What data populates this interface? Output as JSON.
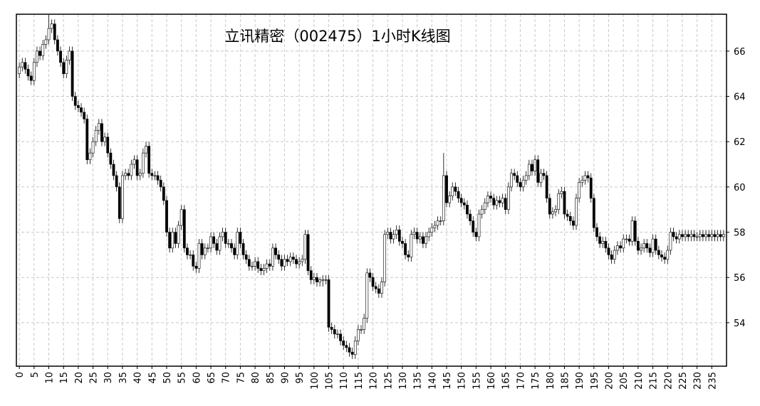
{
  "chart_data": {
    "type": "candlestick",
    "title": "立讯精密（002475）1小时K线图",
    "xlim": [
      -1,
      240
    ],
    "ylim": [
      52.08,
      67.63
    ],
    "grid": true,
    "up_color": "#ffffff",
    "down_color": "#000000",
    "xticks": [
      0,
      5,
      10,
      15,
      20,
      25,
      30,
      35,
      40,
      45,
      50,
      55,
      60,
      65,
      70,
      75,
      80,
      85,
      90,
      95,
      100,
      105,
      110,
      115,
      120,
      125,
      130,
      135,
      140,
      145,
      150,
      155,
      160,
      165,
      170,
      175,
      180,
      185,
      190,
      195,
      200,
      205,
      210,
      215,
      220,
      225,
      230,
      235
    ],
    "yticks": [
      54,
      56,
      58,
      60,
      62,
      64,
      66
    ],
    "open": [
      65.0,
      65.3,
      65.5,
      65.2,
      64.9,
      64.7,
      65.5,
      66.0,
      65.8,
      66.3,
      66.5,
      67.0,
      67.2,
      66.5,
      66.0,
      65.5,
      65.0,
      65.6,
      66.0,
      64.0,
      63.6,
      63.5,
      63.3,
      63.0,
      61.2,
      61.5,
      62.0,
      62.5,
      62.8,
      62.0,
      62.2,
      61.5,
      61.0,
      60.5,
      60.0,
      58.6,
      60.5,
      60.6,
      60.5,
      61.0,
      61.2,
      60.5,
      60.6,
      61.5,
      61.8,
      60.6,
      60.5,
      60.5,
      60.3,
      60.0,
      59.4,
      58.0,
      57.3,
      58.0,
      57.5,
      58.3,
      59.0,
      57.3,
      57.0,
      57.0,
      56.5,
      56.4,
      57.5,
      57.0,
      57.3,
      57.3,
      57.8,
      57.5,
      57.2,
      57.8,
      58.0,
      57.5,
      57.5,
      57.3,
      57.0,
      58.0,
      57.5,
      57.0,
      56.8,
      56.5,
      56.5,
      56.7,
      56.4,
      56.3,
      56.4,
      56.6,
      56.5,
      57.3,
      57.0,
      56.8,
      56.5,
      56.8,
      56.7,
      56.9,
      56.8,
      56.6,
      56.7,
      56.8,
      57.9,
      56.3,
      55.9,
      56.0,
      55.8,
      55.9,
      55.9,
      55.9,
      53.8,
      53.7,
      53.5,
      53.5,
      53.2,
      53.0,
      52.9,
      52.7,
      52.6,
      53.2,
      53.7,
      53.7,
      54.2,
      56.2,
      56.0,
      55.6,
      55.5,
      55.3,
      55.8,
      57.9,
      58.0,
      57.7,
      57.9,
      58.1,
      57.6,
      57.5,
      57.0,
      56.9,
      57.9,
      58.0,
      57.7,
      57.8,
      57.5,
      57.8,
      58.0,
      58.2,
      58.3,
      58.5,
      58.5,
      60.5,
      59.3,
      59.6,
      60.0,
      59.8,
      59.5,
      59.3,
      59.2,
      58.8,
      58.5,
      58.0,
      57.8,
      58.8,
      59.0,
      59.3,
      59.6,
      59.5,
      59.2,
      59.4,
      59.3,
      59.5,
      59.0,
      60.0,
      60.6,
      60.5,
      60.2,
      60.0,
      60.3,
      60.5,
      61.0,
      60.7,
      61.2,
      60.2,
      60.6,
      60.5,
      59.5,
      58.8,
      58.9,
      59.0,
      59.7,
      59.8,
      58.8,
      58.7,
      58.5,
      58.3,
      59.5,
      60.2,
      60.3,
      60.5,
      60.4,
      59.5,
      58.2,
      57.8,
      57.5,
      57.6,
      57.3,
      57.0,
      56.8,
      57.2,
      57.4,
      57.3,
      57.7,
      57.7,
      57.6,
      58.5,
      57.6,
      57.2,
      57.3,
      57.5,
      57.3,
      57.1,
      57.7,
      57.2,
      57.0,
      56.9,
      56.8,
      57.2,
      58.0,
      57.8,
      57.7,
      57.9,
      57.8,
      57.9,
      57.8,
      57.9,
      57.8,
      57.8,
      57.9,
      57.8,
      57.9,
      57.8,
      57.9,
      57.8,
      57.9,
      57.8
    ],
    "high": [
      65.5,
      65.7,
      65.7,
      65.4,
      65.1,
      65.7,
      66.2,
      66.2,
      66.5,
      66.7,
      67.6,
      67.4,
      67.4,
      66.7,
      66.2,
      65.7,
      65.8,
      66.2,
      66.2,
      64.2,
      63.8,
      63.7,
      63.5,
      63.2,
      61.7,
      62.2,
      62.7,
      63.0,
      63.0,
      62.4,
      62.4,
      61.7,
      61.2,
      60.7,
      60.2,
      60.7,
      60.8,
      60.8,
      61.2,
      61.4,
      61.4,
      60.8,
      61.7,
      62.0,
      62.0,
      60.8,
      60.7,
      60.7,
      60.5,
      60.2,
      59.6,
      58.2,
      58.2,
      58.2,
      58.5,
      59.2,
      59.2,
      57.5,
      57.2,
      57.2,
      56.7,
      57.7,
      57.7,
      57.5,
      57.5,
      58.0,
      58.0,
      57.7,
      58.0,
      58.2,
      58.2,
      57.7,
      57.7,
      57.5,
      58.2,
      58.2,
      57.7,
      57.2,
      57.0,
      56.7,
      56.9,
      56.9,
      56.6,
      56.6,
      56.8,
      56.8,
      57.5,
      57.5,
      57.2,
      57.0,
      57.0,
      57.0,
      57.1,
      57.1,
      57.0,
      56.9,
      57.0,
      58.1,
      58.1,
      56.5,
      56.2,
      56.2,
      56.0,
      56.1,
      56.1,
      56.1,
      54.0,
      53.9,
      53.7,
      53.7,
      53.4,
      53.2,
      53.1,
      52.9,
      53.4,
      53.9,
      53.9,
      54.4,
      56.4,
      56.4,
      56.2,
      55.8,
      55.7,
      56.0,
      58.1,
      58.2,
      58.2,
      58.1,
      58.3,
      58.3,
      57.8,
      57.7,
      57.2,
      58.1,
      58.2,
      58.2,
      58.0,
      58.0,
      58.0,
      58.2,
      58.4,
      58.5,
      58.7,
      58.7,
      61.5,
      60.7,
      59.8,
      60.2,
      60.2,
      60.0,
      59.7,
      59.5,
      59.4,
      59.0,
      58.7,
      58.2,
      59.0,
      59.2,
      59.5,
      59.8,
      59.8,
      59.7,
      59.6,
      59.6,
      59.7,
      59.7,
      60.2,
      60.8,
      60.8,
      60.7,
      60.4,
      60.5,
      60.7,
      61.2,
      61.2,
      61.4,
      61.4,
      60.8,
      60.8,
      60.7,
      59.7,
      59.1,
      59.2,
      59.9,
      60.0,
      60.0,
      59.0,
      58.9,
      58.7,
      59.7,
      60.4,
      60.5,
      60.7,
      60.7,
      60.6,
      59.7,
      58.4,
      58.0,
      57.8,
      57.8,
      57.5,
      57.2,
      57.4,
      57.6,
      57.6,
      57.9,
      57.9,
      57.9,
      58.7,
      58.7,
      57.8,
      57.5,
      57.7,
      57.7,
      57.5,
      57.9,
      57.9,
      57.4,
      57.2,
      57.1,
      57.4,
      58.2,
      58.2,
      58.0,
      58.1,
      58.1,
      58.1,
      58.1,
      58.1,
      58.1,
      58.0,
      58.1,
      58.1,
      58.1,
      58.1,
      58.1,
      58.1,
      58.1,
      58.1,
      58.1
    ],
    "low": [
      64.8,
      65.1,
      65.0,
      64.7,
      64.5,
      64.5,
      65.3,
      65.6,
      65.6,
      66.1,
      66.3,
      66.8,
      66.3,
      65.8,
      65.3,
      64.8,
      64.8,
      65.4,
      63.8,
      63.4,
      63.3,
      63.1,
      62.8,
      61.0,
      61.0,
      61.3,
      61.8,
      62.3,
      61.8,
      61.8,
      61.3,
      60.8,
      60.3,
      59.8,
      58.4,
      58.4,
      60.3,
      60.3,
      60.3,
      60.8,
      60.3,
      60.3,
      60.4,
      61.3,
      60.4,
      60.3,
      60.3,
      60.1,
      59.8,
      59.2,
      57.8,
      57.1,
      57.1,
      57.3,
      57.3,
      58.1,
      57.1,
      56.8,
      56.8,
      56.3,
      56.2,
      56.2,
      56.8,
      56.8,
      57.1,
      57.1,
      57.3,
      57.0,
      57.0,
      57.6,
      57.3,
      57.3,
      57.1,
      56.8,
      56.8,
      57.3,
      56.8,
      56.6,
      56.3,
      56.3,
      56.3,
      56.2,
      56.1,
      56.1,
      56.2,
      56.3,
      56.3,
      56.8,
      56.6,
      56.3,
      56.3,
      56.5,
      56.5,
      56.6,
      56.4,
      56.4,
      56.5,
      56.6,
      56.1,
      55.7,
      55.7,
      55.6,
      55.6,
      55.6,
      55.7,
      53.6,
      53.5,
      53.3,
      53.3,
      53.0,
      52.8,
      52.7,
      52.5,
      52.4,
      52.4,
      53.0,
      53.5,
      53.5,
      54.0,
      55.8,
      55.4,
      55.3,
      55.1,
      55.1,
      55.6,
      57.7,
      57.5,
      57.5,
      57.7,
      57.4,
      57.3,
      56.8,
      56.7,
      56.7,
      57.7,
      57.5,
      57.5,
      57.3,
      57.3,
      57.6,
      57.8,
      58.0,
      58.1,
      58.3,
      58.3,
      59.1,
      59.1,
      59.4,
      59.6,
      59.3,
      59.1,
      59.0,
      58.6,
      58.3,
      57.8,
      57.6,
      57.6,
      58.6,
      58.8,
      59.1,
      59.3,
      59.0,
      59.0,
      59.1,
      59.1,
      58.8,
      58.8,
      59.8,
      60.3,
      60.0,
      59.8,
      59.8,
      60.1,
      60.3,
      60.5,
      60.5,
      60.0,
      60.0,
      60.3,
      59.3,
      58.6,
      58.6,
      58.7,
      58.8,
      59.5,
      58.6,
      58.5,
      58.3,
      58.1,
      58.1,
      59.3,
      60.0,
      60.1,
      60.2,
      59.3,
      58.0,
      57.6,
      57.3,
      57.3,
      57.1,
      56.8,
      56.6,
      56.6,
      57.0,
      57.1,
      57.1,
      57.5,
      57.4,
      57.4,
      57.4,
      57.0,
      57.0,
      57.1,
      57.1,
      56.9,
      56.9,
      57.0,
      56.8,
      56.7,
      56.6,
      56.6,
      57.0,
      57.6,
      57.5,
      57.5,
      57.6,
      57.6,
      57.6,
      57.6,
      57.6,
      57.6,
      57.6,
      57.6,
      57.6,
      57.6,
      57.6,
      57.6,
      57.6,
      57.6,
      57.6
    ],
    "close": [
      65.3,
      65.5,
      65.2,
      64.9,
      64.7,
      65.5,
      66.0,
      65.8,
      66.3,
      66.5,
      67.0,
      67.2,
      66.5,
      66.0,
      65.5,
      65.0,
      65.6,
      66.0,
      64.0,
      63.6,
      63.5,
      63.3,
      63.0,
      61.2,
      61.5,
      62.0,
      62.5,
      62.8,
      62.0,
      62.2,
      61.5,
      61.0,
      60.5,
      60.0,
      58.6,
      60.5,
      60.6,
      60.5,
      61.0,
      61.2,
      60.5,
      60.6,
      61.5,
      61.8,
      60.6,
      60.5,
      60.5,
      60.3,
      60.0,
      59.4,
      58.0,
      57.3,
      58.0,
      57.5,
      58.3,
      59.0,
      57.3,
      57.0,
      57.0,
      56.5,
      56.4,
      57.5,
      57.0,
      57.3,
      57.3,
      57.8,
      57.5,
      57.2,
      57.8,
      58.0,
      57.5,
      57.5,
      57.3,
      57.0,
      58.0,
      57.5,
      57.0,
      56.8,
      56.5,
      56.5,
      56.7,
      56.4,
      56.3,
      56.4,
      56.6,
      56.5,
      57.3,
      57.0,
      56.8,
      56.5,
      56.8,
      56.7,
      56.9,
      56.8,
      56.6,
      56.7,
      56.8,
      57.9,
      56.3,
      55.9,
      56.0,
      55.8,
      55.9,
      55.9,
      55.9,
      53.8,
      53.7,
      53.5,
      53.5,
      53.2,
      53.0,
      52.9,
      52.7,
      52.6,
      53.2,
      53.7,
      53.7,
      54.2,
      56.2,
      56.0,
      55.6,
      55.5,
      55.3,
      55.8,
      57.9,
      58.0,
      57.7,
      57.9,
      58.1,
      57.6,
      57.5,
      57.0,
      56.9,
      57.9,
      58.0,
      57.7,
      57.8,
      57.5,
      57.8,
      58.0,
      58.2,
      58.3,
      58.5,
      58.5,
      60.5,
      59.3,
      59.6,
      60.0,
      59.8,
      59.5,
      59.3,
      59.2,
      58.8,
      58.5,
      58.0,
      57.8,
      58.8,
      59.0,
      59.3,
      59.6,
      59.5,
      59.2,
      59.4,
      59.3,
      59.5,
      59.0,
      60.0,
      60.6,
      60.5,
      60.2,
      60.0,
      60.3,
      60.5,
      61.0,
      60.7,
      61.2,
      60.2,
      60.6,
      60.5,
      59.5,
      58.8,
      58.9,
      59.0,
      59.7,
      59.8,
      58.8,
      58.7,
      58.5,
      58.3,
      59.5,
      60.2,
      60.3,
      60.5,
      60.4,
      59.5,
      58.2,
      57.8,
      57.5,
      57.6,
      57.3,
      57.0,
      56.8,
      57.2,
      57.4,
      57.3,
      57.7,
      57.7,
      57.6,
      58.5,
      57.6,
      57.2,
      57.3,
      57.5,
      57.3,
      57.1,
      57.7,
      57.2,
      57.0,
      56.9,
      56.8,
      57.2,
      58.0,
      57.8,
      57.7,
      57.9,
      57.8,
      57.9,
      57.8,
      57.9,
      57.8,
      57.8,
      57.9,
      57.8,
      57.9,
      57.8,
      57.9,
      57.8,
      57.9,
      57.8,
      57.9
    ]
  }
}
